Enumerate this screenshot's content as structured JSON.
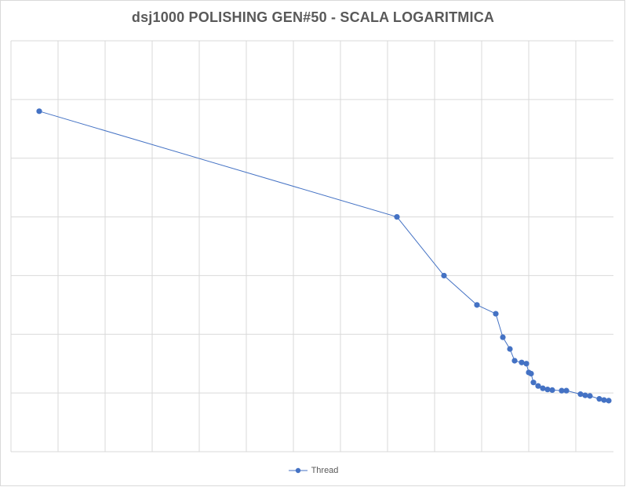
{
  "chart_data": {
    "type": "line",
    "title": "dsj1000 POLISHING GEN#50 - SCALA LOGARITMICA",
    "xlabel": "",
    "ylabel": "",
    "scale": "log",
    "grid": true,
    "legend_position": "bottom",
    "series_color": "#4472c4",
    "series": [
      {
        "name": "Thread",
        "points": [
          [
            0.6,
            5.8
          ],
          [
            8.2,
            4.0
          ],
          [
            9.2,
            3.0
          ],
          [
            9.9,
            2.5
          ],
          [
            10.3,
            2.35
          ],
          [
            10.45,
            1.95
          ],
          [
            10.6,
            1.75
          ],
          [
            10.7,
            1.55
          ],
          [
            10.85,
            1.52
          ],
          [
            10.95,
            1.5
          ],
          [
            11.0,
            1.35
          ],
          [
            11.05,
            1.33
          ],
          [
            11.1,
            1.18
          ],
          [
            11.2,
            1.12
          ],
          [
            11.3,
            1.08
          ],
          [
            11.4,
            1.06
          ],
          [
            11.5,
            1.05
          ],
          [
            11.7,
            1.04
          ],
          [
            11.8,
            1.04
          ],
          [
            12.1,
            0.98
          ],
          [
            12.2,
            0.96
          ],
          [
            12.3,
            0.95
          ],
          [
            12.5,
            0.9
          ],
          [
            12.6,
            0.88
          ],
          [
            12.7,
            0.87
          ]
        ]
      }
    ],
    "xlim": [
      0,
      12.8
    ],
    "ylim": [
      0,
      7
    ]
  }
}
